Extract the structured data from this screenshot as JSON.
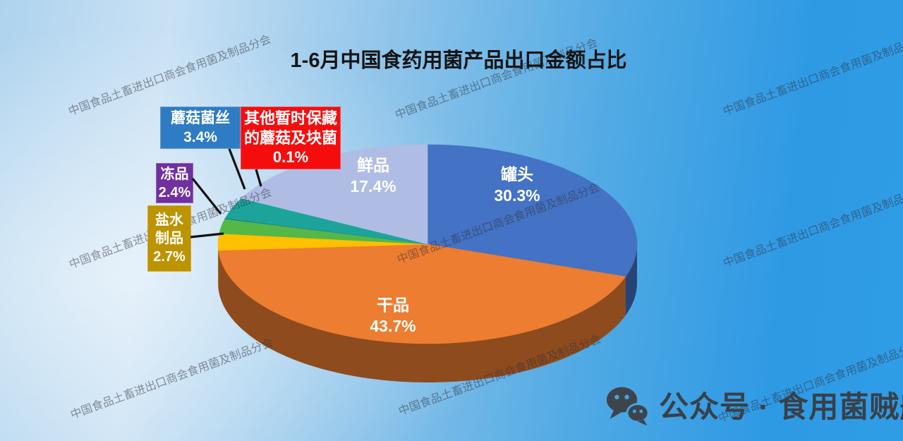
{
  "title": "1-6月中国食药用菌产品出口金额占比",
  "watermark": {
    "text": "中国食品土畜进出口商会食用菌及制品分会"
  },
  "badge": {
    "icon": "wechat-icon",
    "text": "公众号 · 食用菌贼船"
  },
  "chart_data": {
    "type": "pie",
    "style": "3d-pie",
    "title": "1-6月中国食药用菌产品出口金额占比",
    "unit": "%",
    "start_angle_deg": 0,
    "direction": "clockwise",
    "legend_position": "callout-labels",
    "slices": [
      {
        "key": "canned",
        "label": "罐头",
        "value": 30.3,
        "pct": "30.3%",
        "color": "#4472C4",
        "label_style": "inside"
      },
      {
        "key": "dried",
        "label": "干品",
        "value": 43.7,
        "pct": "43.7%",
        "color": "#ED7D31",
        "label_style": "inside"
      },
      {
        "key": "brine-products",
        "label": "盐水制品",
        "value": 2.7,
        "pct": "2.7%",
        "color": "#FFC000",
        "box_color": "#BC9300",
        "label_style": "callout"
      },
      {
        "key": "frozen",
        "label": "冻品",
        "value": 2.4,
        "pct": "2.4%",
        "color": "#53B848",
        "box_color": "#7030A0",
        "label_style": "callout"
      },
      {
        "key": "other-preserved",
        "label": "其他暂时保藏的蘑菇及块菌",
        "value": 0.1,
        "pct": "0.1%",
        "color": "#17697E",
        "box_color": "#F50D0D",
        "label_style": "callout"
      },
      {
        "key": "mushroom-mycelium",
        "label": "蘑菇菌丝",
        "value": 3.4,
        "pct": "3.4%",
        "color": "#1CA49B",
        "box_color": "#2E7CC3",
        "label_style": "callout"
      },
      {
        "key": "fresh",
        "label": "鲜品",
        "value": 17.4,
        "pct": "17.4%",
        "color": "#AFBDE5",
        "label_style": "inside"
      }
    ]
  }
}
